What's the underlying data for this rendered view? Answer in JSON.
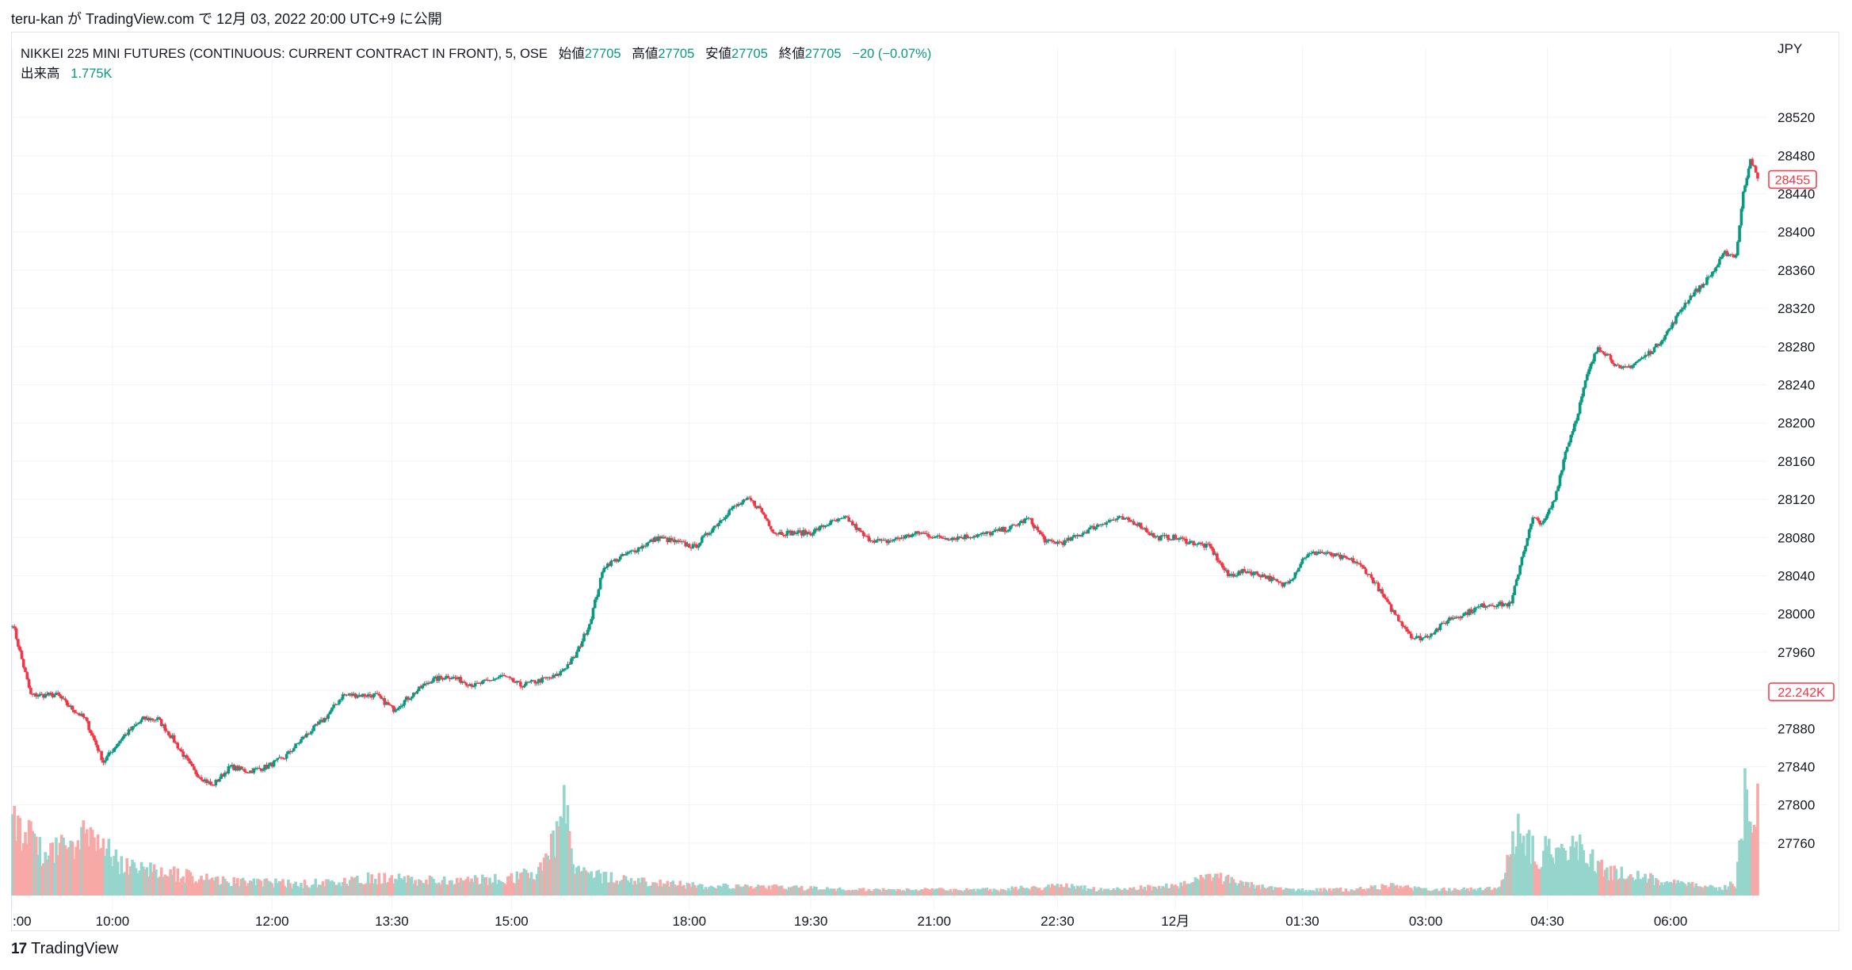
{
  "header": {
    "publish_text": "teru-kan が TradingView.com で 12月 03, 2022 20:00 UTC+9 に公開"
  },
  "legend": {
    "symbol": "NIKKEI 225 MINI FUTURES (CONTINUOUS: CURRENT CONTRACT IN FRONT), 5, OSE",
    "open_label": "始値",
    "open_value": "27705",
    "high_label": "高値",
    "high_value": "27705",
    "low_label": "安値",
    "low_value": "27705",
    "close_label": "終値",
    "close_value": "27705",
    "change": "−20 (−0.07%)",
    "volume_label": "出来高",
    "volume_value": "1.775K"
  },
  "axis": {
    "currency": "JPY",
    "price_ticks": [
      "28520",
      "28480",
      "28440",
      "28400",
      "28360",
      "28320",
      "28280",
      "28240",
      "28200",
      "28160",
      "28120",
      "28080",
      "28040",
      "28000",
      "27960",
      "27920",
      "27880",
      "27840",
      "27800",
      "27760"
    ],
    "time_ticks": [
      ":00",
      "10:00",
      "12:00",
      "13:30",
      "15:00",
      "18:00",
      "19:30",
      "21:00",
      "22:30",
      "12月",
      "01:30",
      "03:00",
      "04:30",
      "06:00"
    ]
  },
  "badges": {
    "last_price": "28455",
    "last_volume": "22.242K"
  },
  "colors": {
    "up": "#089981",
    "down": "#f23645",
    "vol_up": "#95d5cc",
    "vol_down": "#f7a9a7",
    "grid": "#f0f3fa",
    "axis_text": "#131722"
  },
  "chart_data": {
    "type": "candlestick",
    "ylim": [
      27730,
      28545
    ],
    "anchors": [
      [
        0,
        27990
      ],
      [
        10,
        27915
      ],
      [
        25,
        27915
      ],
      [
        30,
        27905
      ],
      [
        40,
        27890
      ],
      [
        50,
        27845
      ],
      [
        60,
        27870
      ],
      [
        72,
        27890
      ],
      [
        80,
        27890
      ],
      [
        88,
        27870
      ],
      [
        100,
        27835
      ],
      [
        110,
        27820
      ],
      [
        120,
        27840
      ],
      [
        130,
        27835
      ],
      [
        140,
        27840
      ],
      [
        150,
        27850
      ],
      [
        160,
        27870
      ],
      [
        172,
        27890
      ],
      [
        182,
        27915
      ],
      [
        200,
        27915
      ],
      [
        210,
        27900
      ],
      [
        220,
        27915
      ],
      [
        230,
        27930
      ],
      [
        240,
        27935
      ],
      [
        255,
        27925
      ],
      [
        270,
        27935
      ],
      [
        280,
        27925
      ],
      [
        300,
        27935
      ],
      [
        310,
        27955
      ],
      [
        318,
        27990
      ],
      [
        326,
        28050
      ],
      [
        336,
        28060
      ],
      [
        346,
        28070
      ],
      [
        356,
        28080
      ],
      [
        366,
        28075
      ],
      [
        376,
        28070
      ],
      [
        386,
        28090
      ],
      [
        396,
        28110
      ],
      [
        406,
        28120
      ],
      [
        412,
        28110
      ],
      [
        420,
        28085
      ],
      [
        430,
        28085
      ],
      [
        440,
        28085
      ],
      [
        450,
        28095
      ],
      [
        460,
        28100
      ],
      [
        470,
        28080
      ],
      [
        480,
        28075
      ],
      [
        490,
        28080
      ],
      [
        500,
        28085
      ],
      [
        510,
        28080
      ],
      [
        520,
        28080
      ],
      [
        530,
        28082
      ],
      [
        540,
        28085
      ],
      [
        550,
        28090
      ],
      [
        560,
        28100
      ],
      [
        570,
        28075
      ],
      [
        580,
        28075
      ],
      [
        590,
        28085
      ],
      [
        600,
        28095
      ],
      [
        610,
        28100
      ],
      [
        620,
        28095
      ],
      [
        630,
        28080
      ],
      [
        640,
        28080
      ],
      [
        650,
        28075
      ],
      [
        660,
        28070
      ],
      [
        670,
        28040
      ],
      [
        680,
        28045
      ],
      [
        690,
        28040
      ],
      [
        700,
        28030
      ],
      [
        706,
        28040
      ],
      [
        712,
        28060
      ],
      [
        720,
        28065
      ],
      [
        730,
        28060
      ],
      [
        740,
        28055
      ],
      [
        746,
        28045
      ],
      [
        752,
        28030
      ],
      [
        758,
        28010
      ],
      [
        766,
        27990
      ],
      [
        772,
        27975
      ],
      [
        778,
        27975
      ],
      [
        786,
        27985
      ],
      [
        792,
        27995
      ],
      [
        800,
        28000
      ],
      [
        806,
        28005
      ],
      [
        812,
        28010
      ],
      [
        818,
        28010
      ],
      [
        826,
        28010
      ],
      [
        832,
        28060
      ],
      [
        838,
        28100
      ],
      [
        844,
        28095
      ],
      [
        850,
        28120
      ],
      [
        856,
        28170
      ],
      [
        862,
        28205
      ],
      [
        868,
        28250
      ],
      [
        874,
        28280
      ],
      [
        880,
        28270
      ],
      [
        886,
        28255
      ],
      [
        892,
        28260
      ],
      [
        900,
        28270
      ],
      [
        906,
        28280
      ],
      [
        914,
        28300
      ],
      [
        920,
        28320
      ],
      [
        926,
        28335
      ],
      [
        932,
        28345
      ],
      [
        938,
        28360
      ],
      [
        944,
        28378
      ],
      [
        950,
        28375
      ],
      [
        954,
        28440
      ],
      [
        958,
        28478
      ],
      [
        962,
        28455
      ]
    ],
    "volume_anchors": [
      [
        0,
        0.62
      ],
      [
        20,
        0.35
      ],
      [
        40,
        0.55
      ],
      [
        60,
        0.25
      ],
      [
        80,
        0.2
      ],
      [
        120,
        0.12
      ],
      [
        160,
        0.1
      ],
      [
        200,
        0.15
      ],
      [
        240,
        0.12
      ],
      [
        270,
        0.14
      ],
      [
        290,
        0.2
      ],
      [
        300,
        0.55
      ],
      [
        305,
        0.95
      ],
      [
        310,
        0.2
      ],
      [
        340,
        0.12
      ],
      [
        380,
        0.08
      ],
      [
        420,
        0.07
      ],
      [
        460,
        0.05
      ],
      [
        500,
        0.05
      ],
      [
        540,
        0.05
      ],
      [
        580,
        0.08
      ],
      [
        600,
        0.05
      ],
      [
        640,
        0.08
      ],
      [
        660,
        0.18
      ],
      [
        680,
        0.1
      ],
      [
        700,
        0.05
      ],
      [
        740,
        0.05
      ],
      [
        760,
        0.08
      ],
      [
        780,
        0.05
      ],
      [
        820,
        0.06
      ],
      [
        830,
        0.55
      ],
      [
        840,
        0.35
      ],
      [
        860,
        0.45
      ],
      [
        880,
        0.2
      ],
      [
        920,
        0.1
      ],
      [
        940,
        0.06
      ],
      [
        950,
        0.1
      ],
      [
        955,
        0.85
      ],
      [
        958,
        0.55
      ],
      [
        962,
        0.9
      ]
    ]
  }
}
